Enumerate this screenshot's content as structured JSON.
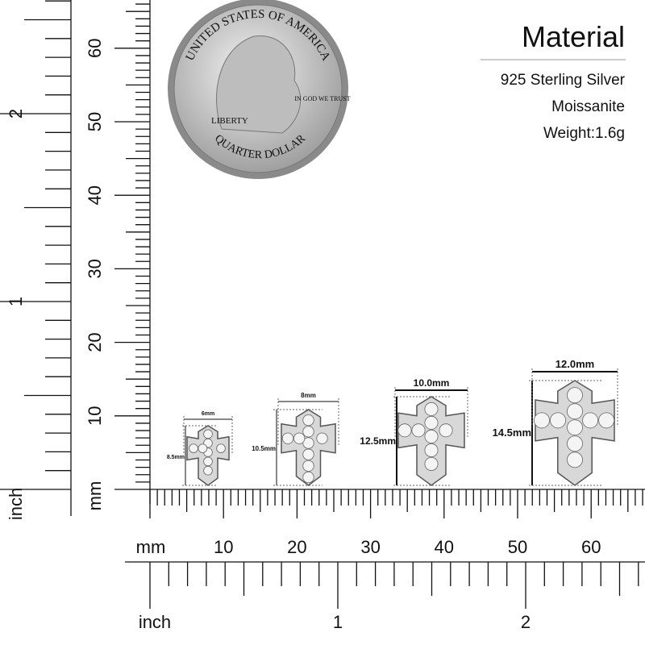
{
  "header": {
    "title": "Material",
    "lines": [
      "925 Sterling Silver",
      "Moissanite",
      "Weight:1.6g"
    ]
  },
  "coin": {
    "top": "UNITED STATES OF AMERICA",
    "left": "LIBERTY",
    "right": "IN GOD WE TRUST",
    "bottom": "QUARTER DOLLAR"
  },
  "rulers": {
    "left_inch": {
      "unit": "inch",
      "labels": [
        "1",
        "2"
      ]
    },
    "left_mm": {
      "unit": "mm",
      "labels": [
        "10",
        "20",
        "30",
        "40",
        "50",
        "60"
      ]
    },
    "bottom_mm": {
      "unit": "mm",
      "labels": [
        "10",
        "20",
        "30",
        "40",
        "50",
        "60"
      ]
    },
    "bottom_inch": {
      "unit": "inch",
      "labels": [
        "1",
        "2"
      ]
    }
  },
  "items": [
    {
      "width": "6mm",
      "height": "8.5mm"
    },
    {
      "width": "8mm",
      "height": "10.5mm"
    },
    {
      "width": "10.0mm",
      "height": "12.5mm"
    },
    {
      "width": "12.0mm",
      "height": "14.5mm"
    }
  ]
}
